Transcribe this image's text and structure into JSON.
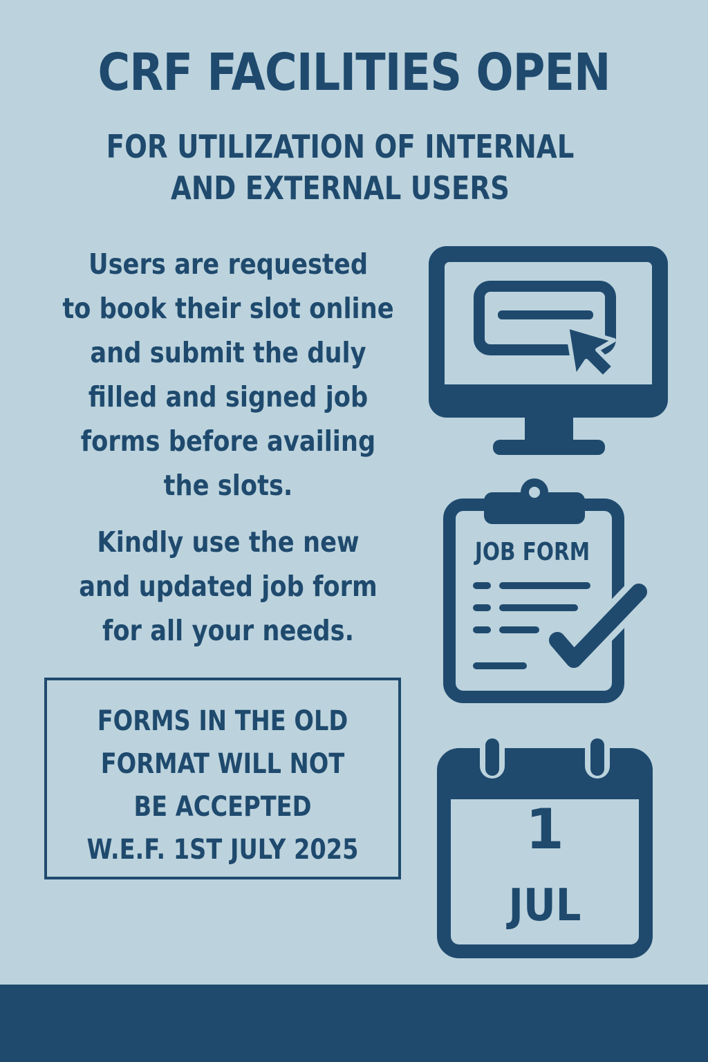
{
  "header": {
    "title": "CRF FACILITIES OPEN",
    "subtitle_lines": [
      "FOR UTILIZATION OF INTERNAL",
      "AND EXTERNAL USERS"
    ]
  },
  "booking_instructions": {
    "lines": [
      "Users are requested",
      "to book their slot online",
      "and submit the duly",
      "filled and signed job",
      "forms before availing",
      "the slots."
    ]
  },
  "form_notice": {
    "lines": [
      "Kindly use the new",
      "and updated job form",
      "for all your needs."
    ]
  },
  "warning_box": {
    "lines": [
      "FORMS IN THE OLD",
      "FORMAT WILL NOT",
      "BE ACCEPTED",
      "W.E.F. 1ST JULY 2025"
    ]
  },
  "icons": {
    "monitor": "computer-monitor-click-icon",
    "clipboard": "job-form-clipboard-icon",
    "clipboard_label": "JOB FORM",
    "calendar": "calendar-icon",
    "calendar_day": "1",
    "calendar_month": "JUL"
  },
  "colors": {
    "background": "#bcd3dd",
    "primary": "#1f4a6e"
  }
}
